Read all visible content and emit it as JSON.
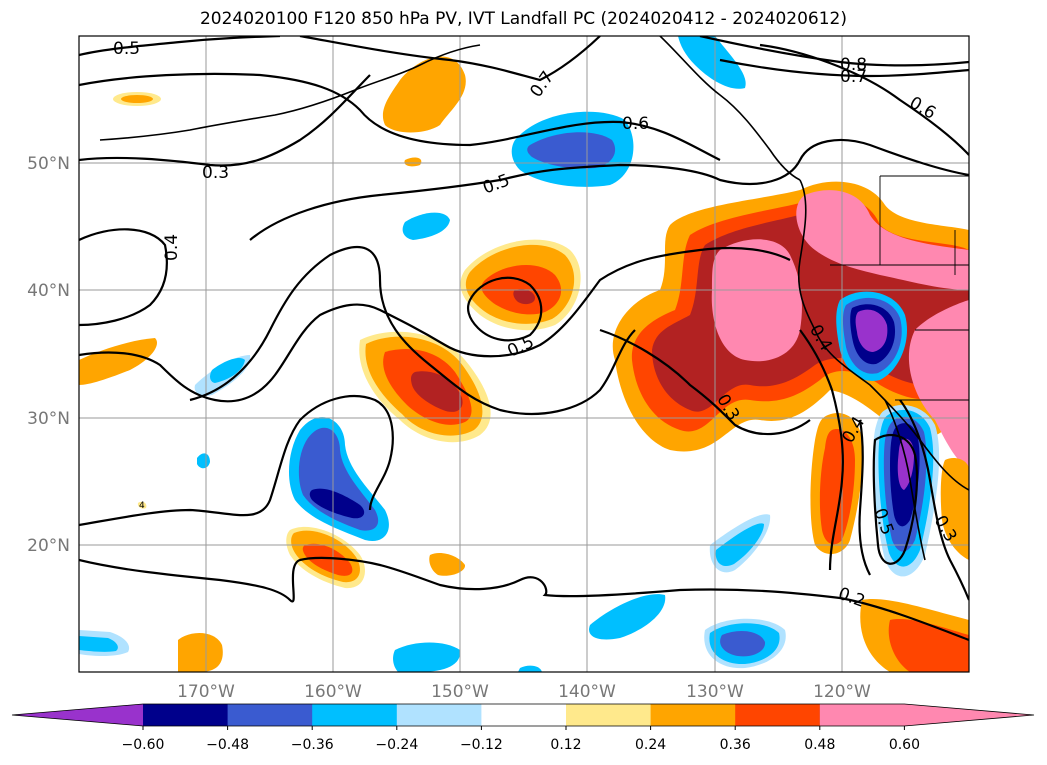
{
  "title": "2024020100 F120 850 hPa PV, IVT Landfall PC (2024020412 - 2024020612)",
  "lat_ticks": [
    "50°N",
    "40°N",
    "30°N",
    "20°N"
  ],
  "lon_ticks": [
    "170°W",
    "160°W",
    "150°W",
    "140°W",
    "130°W",
    "120°W"
  ],
  "colorbar": {
    "ticks": [
      "−0.60",
      "−0.48",
      "−0.36",
      "−0.24",
      "−0.12",
      "0.12",
      "0.24",
      "0.36",
      "0.48",
      "0.60"
    ],
    "colors": [
      "#9932cc",
      "#00008b",
      "#3a5bd0",
      "#00bfff",
      "#b0e2ff",
      "#ffffff",
      "#ffe98c",
      "#ffa500",
      "#ff4500",
      "#b22222",
      "#ff88b0"
    ]
  },
  "contour_labels": [
    "0.5",
    "0.7",
    "0.8",
    "0.7",
    "0.6",
    "0.6",
    "0.3",
    "0.5",
    "0.4",
    "0.5",
    "0.4",
    "0.3",
    "0.4",
    "0.5",
    "0.3",
    "0.2"
  ],
  "small_label": "4",
  "map": {
    "lon_range": [
      "180°W",
      "110°W"
    ],
    "lat_range": [
      "10°N",
      "60°N"
    ],
    "variables": [
      "850 hPa PV (contours)",
      "IVT Landfall PC (shaded)"
    ]
  }
}
